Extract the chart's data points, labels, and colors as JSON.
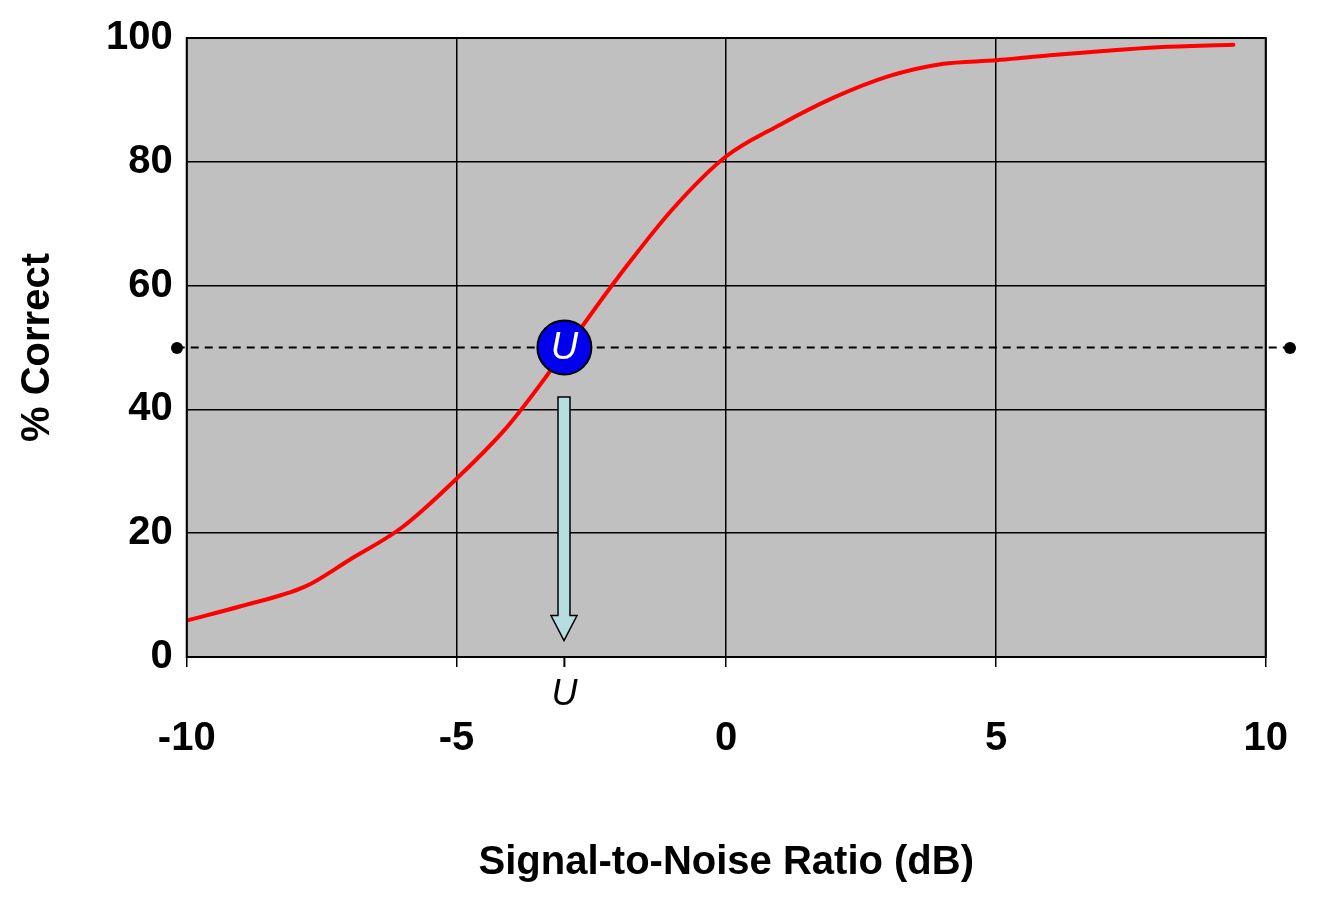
{
  "chart_data": {
    "type": "line",
    "xlabel": "Signal-to-Noise Ratio (dB)",
    "ylabel": "% Correct",
    "x": [
      -10,
      -9,
      -7.8,
      -7,
      -6,
      -5,
      -4,
      -3,
      -2,
      -1,
      0,
      1,
      2,
      3,
      4,
      5,
      6,
      7,
      8,
      9.4
    ],
    "series": [
      {
        "color": "#ff0000",
        "values": [
          5.9,
          8.2,
          11.4,
          15.6,
          21,
          28.8,
          37.8,
          null,
          61.4,
          72.3,
          80.9,
          86,
          90.4,
          93.8,
          95.8,
          96.4,
          97.2,
          97.9,
          98.5,
          98.9
        ]
      }
    ],
    "xlim": [
      -10,
      10
    ],
    "xticks": [
      -10,
      -5,
      0,
      5,
      10
    ],
    "ylim": [
      0,
      100
    ],
    "yticks": [
      0,
      20,
      40,
      60,
      80,
      100
    ],
    "grid": true,
    "legend": false,
    "marker": "none",
    "line_style": "solid",
    "ref_lines": [
      {
        "axis": "y",
        "value": 50,
        "label": null,
        "color": "#000000",
        "line_style": "dashed"
      }
    ],
    "annotations": [
      {
        "text": "U",
        "x": -3,
        "y": 50
      },
      "U"
    ]
  }
}
